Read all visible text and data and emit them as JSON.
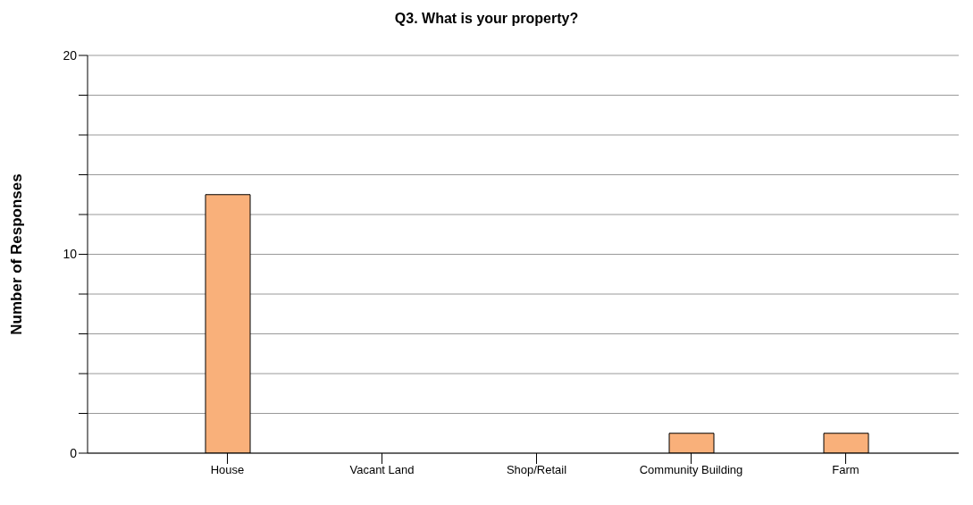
{
  "chart_data": {
    "type": "bar",
    "title": "Q3. What is your property?",
    "ylabel": "Number of Responses",
    "categories": [
      "House",
      "Vacant Land",
      "Shop/Retail",
      "Community Building",
      "Farm"
    ],
    "values": [
      13,
      0,
      0,
      1,
      1
    ],
    "color": "#f9b07a",
    "ylim": [
      0,
      20
    ],
    "yticks": [
      0,
      {
        "value": 2,
        "label": null
      },
      {
        "value": 4,
        "label": null
      },
      {
        "value": 6,
        "label": null
      },
      {
        "value": 8,
        "label": null
      },
      10,
      {
        "value": 12,
        "label": null
      },
      {
        "value": 14,
        "label": null
      },
      {
        "value": 16,
        "label": null
      },
      {
        "value": 18,
        "label": null
      },
      20
    ],
    "grid": "y",
    "legend": false
  }
}
